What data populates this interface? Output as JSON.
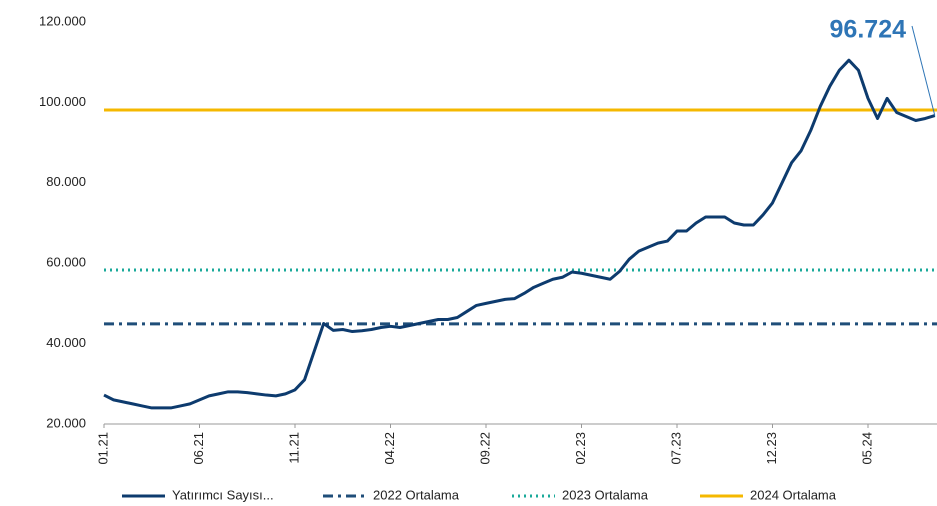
{
  "chart_data": {
    "type": "line",
    "categories": [
      "01.21",
      null,
      null,
      null,
      null,
      null,
      null,
      null,
      null,
      null,
      "06.21",
      null,
      null,
      null,
      null,
      null,
      null,
      null,
      null,
      null,
      "11.21",
      null,
      null,
      null,
      null,
      null,
      null,
      null,
      null,
      null,
      "04.22",
      null,
      null,
      null,
      null,
      null,
      null,
      null,
      null,
      null,
      "09.22",
      null,
      null,
      null,
      null,
      null,
      null,
      null,
      null,
      null,
      "02.23",
      null,
      null,
      null,
      null,
      null,
      null,
      null,
      null,
      null,
      "07.23",
      null,
      null,
      null,
      null,
      null,
      null,
      null,
      null,
      null,
      "12.23",
      null,
      null,
      null,
      null,
      null,
      null,
      null,
      null,
      null,
      "05.24",
      null,
      null,
      null,
      null,
      null,
      null,
      null
    ],
    "series": [
      {
        "name": "Yatırımcı Sayısı...",
        "color": "#0d3b6e",
        "values": [
          27200,
          26000,
          25500,
          25000,
          24500,
          24000,
          24000,
          24000,
          24500,
          25000,
          26000,
          27000,
          27500,
          28000,
          28000,
          27800,
          27500,
          27200,
          27000,
          27500,
          28500,
          31000,
          38000,
          45000,
          43300,
          43500,
          43000,
          43200,
          43500,
          44000,
          44300,
          44000,
          44500,
          45000,
          45500,
          46000,
          46000,
          46500,
          48000,
          49500,
          50000,
          50500,
          51000,
          51200,
          52500,
          54000,
          55000,
          56000,
          56500,
          57800,
          57500,
          57000,
          56500,
          56000,
          58000,
          61000,
          63000,
          64000,
          65000,
          65500,
          68000,
          68000,
          70000,
          71500,
          71500,
          71500,
          70000,
          69500,
          69500,
          72000,
          75000,
          80000,
          85000,
          88000,
          93000,
          99000,
          104000,
          108000,
          110500,
          108000,
          101000,
          96000,
          101000,
          97500,
          96500,
          95500,
          96000,
          96724
        ]
      }
    ],
    "reference_lines": [
      {
        "name": "2022 Ortalama",
        "color": "#1f4e79",
        "value": 44900,
        "style": "dashdot"
      },
      {
        "name": "2023 Ortalama",
        "color": "#1aa99a",
        "value": 58300,
        "style": "dotted"
      },
      {
        "name": "2024 Ortalama",
        "color": "#f5b800",
        "value": 98100,
        "style": "solid"
      }
    ],
    "annotation": {
      "value": 96724,
      "label": "96.724",
      "color": "#2e75b6"
    },
    "ylim": [
      20000,
      120000
    ],
    "yticks": [
      {
        "value": 20000,
        "label": "20.000"
      },
      {
        "value": 40000,
        "label": "40.000"
      },
      {
        "value": 60000,
        "label": "60.000"
      },
      {
        "value": 80000,
        "label": "80.000"
      },
      {
        "value": 100000,
        "label": "100.000"
      },
      {
        "value": 120000,
        "label": "120.000"
      }
    ],
    "grid": false
  }
}
